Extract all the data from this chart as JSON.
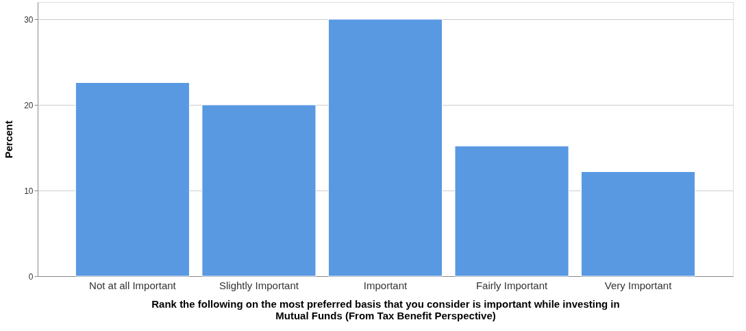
{
  "chart_data": {
    "type": "bar",
    "xlabel": "Rank the following on the most preferred basis that you consider is important while investing in Mutual Funds (From Tax Benefit Perspective)",
    "ylabel": "Percent",
    "categories": [
      "Not at all Important",
      "Slightly Important",
      "Important",
      "Fairly Important",
      "Very Important"
    ],
    "values": [
      22.6,
      20.0,
      30.0,
      15.2,
      12.2
    ],
    "color": "#5899e2",
    "ylim": [
      0,
      32
    ],
    "yticks": [
      0,
      10,
      20,
      30
    ],
    "grid": "y"
  }
}
